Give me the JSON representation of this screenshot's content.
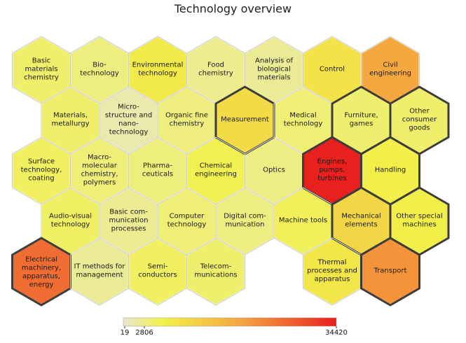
{
  "chart_data": {
    "type": "hexbin-map",
    "title": "Technology overview",
    "color_scale": {
      "min": 19,
      "max": 34420,
      "tick_labels": [
        "19",
        "2806",
        "34420"
      ],
      "tick_values": [
        19,
        2806,
        34420
      ],
      "colors": [
        "#e8e6d2",
        "#f2f24a",
        "#f5a640",
        "#e8201e"
      ]
    },
    "cells": [
      {
        "row": 0,
        "col": 0,
        "label": "Basic materials chemistry",
        "lines": [
          "Basic",
          "materials",
          "chemistry"
        ],
        "value": 420,
        "bold": false
      },
      {
        "row": 0,
        "col": 1,
        "label": "Biotechnology",
        "lines": [
          "Bio-",
          "technology"
        ],
        "value": 230,
        "bold": false
      },
      {
        "row": 0,
        "col": 2,
        "label": "Environmental technology",
        "lines": [
          "Environmental",
          "technology"
        ],
        "value": 1500,
        "bold": false
      },
      {
        "row": 0,
        "col": 3,
        "label": "Food chemistry",
        "lines": [
          "Food",
          "chemistry"
        ],
        "value": 150,
        "bold": false
      },
      {
        "row": 0,
        "col": 4,
        "label": "Analysis of biological materials",
        "lines": [
          "Analysis of",
          "biological",
          "materials"
        ],
        "value": 120,
        "bold": false
      },
      {
        "row": 0,
        "col": 5,
        "label": "Control",
        "lines": [
          "Control"
        ],
        "value": 1900,
        "bold": false
      },
      {
        "row": 0,
        "col": 6,
        "label": "Civil engineering",
        "lines": [
          "Civil",
          "engineering"
        ],
        "value": 11000,
        "bold": false
      },
      {
        "row": 1,
        "col": 0,
        "label": "Materials, metallurgy",
        "lines": [
          "Materials,",
          "metallurgy"
        ],
        "value": 420,
        "bold": false
      },
      {
        "row": 1,
        "col": 1,
        "label": "Microstructure and nanotechnology",
        "lines": [
          "Micro-",
          "structure and",
          "nano-",
          "technology"
        ],
        "value": 60,
        "bold": false
      },
      {
        "row": 1,
        "col": 2,
        "label": "Organic fine chemistry",
        "lines": [
          "Organic fine",
          "chemistry"
        ],
        "value": 240,
        "bold": false
      },
      {
        "row": 1,
        "col": 3,
        "label": "Measurement",
        "lines": [
          "Measurement"
        ],
        "value": 2400,
        "bold": true
      },
      {
        "row": 1,
        "col": 4,
        "label": "Medical technology",
        "lines": [
          "Medical",
          "technology"
        ],
        "value": 320,
        "bold": false
      },
      {
        "row": 1,
        "col": 5,
        "label": "Furniture, games",
        "lines": [
          "Furniture,",
          "games"
        ],
        "value": 380,
        "bold": true
      },
      {
        "row": 1,
        "col": 6,
        "label": "Other consumer goods",
        "lines": [
          "Other",
          "consumer",
          "goods"
        ],
        "value": 420,
        "bold": true
      },
      {
        "row": 2,
        "col": 0,
        "label": "Surface technology, coating",
        "lines": [
          "Surface",
          "technology,",
          "coating"
        ],
        "value": 600,
        "bold": false
      },
      {
        "row": 2,
        "col": 1,
        "label": "Macromolecular chemistry, polymers",
        "lines": [
          "Macro-",
          "molecular",
          "chemistry,",
          "polymers"
        ],
        "value": 300,
        "bold": false
      },
      {
        "row": 2,
        "col": 2,
        "label": "Pharmaceuticals",
        "lines": [
          "Pharma-",
          "ceuticals"
        ],
        "value": 260,
        "bold": false
      },
      {
        "row": 2,
        "col": 3,
        "label": "Chemical engineering",
        "lines": [
          "Chemical",
          "engineering"
        ],
        "value": 950,
        "bold": false
      },
      {
        "row": 2,
        "col": 4,
        "label": "Optics",
        "lines": [
          "Optics"
        ],
        "value": 200,
        "bold": false
      },
      {
        "row": 2,
        "col": 5,
        "label": "Engines, pumps, turbines",
        "lines": [
          "Engines,",
          "pumps,",
          "turbines"
        ],
        "value": 34420,
        "bold": true
      },
      {
        "row": 2,
        "col": 6,
        "label": "Handling",
        "lines": [
          "Handling"
        ],
        "value": 1300,
        "bold": true
      },
      {
        "row": 3,
        "col": 0,
        "label": "Audio-visual technology",
        "lines": [
          "Audio-visual",
          "technology"
        ],
        "value": 520,
        "bold": false
      },
      {
        "row": 3,
        "col": 1,
        "label": "Basic communication processes",
        "lines": [
          "Basic com-",
          "munication",
          "processes"
        ],
        "value": 130,
        "bold": false
      },
      {
        "row": 3,
        "col": 2,
        "label": "Computer technology",
        "lines": [
          "Computer",
          "technology"
        ],
        "value": 300,
        "bold": false
      },
      {
        "row": 3,
        "col": 3,
        "label": "Digital communication",
        "lines": [
          "Digital com-",
          "munication"
        ],
        "value": 220,
        "bold": false
      },
      {
        "row": 3,
        "col": 4,
        "label": "Machine tools",
        "lines": [
          "Machine tools"
        ],
        "value": 700,
        "bold": false
      },
      {
        "row": 3,
        "col": 5,
        "label": "Mechanical elements",
        "lines": [
          "Mechanical",
          "elements"
        ],
        "value": 2700,
        "bold": true
      },
      {
        "row": 3,
        "col": 6,
        "label": "Other special machines",
        "lines": [
          "Other special",
          "machines"
        ],
        "value": 1300,
        "bold": true
      },
      {
        "row": 4,
        "col": 0,
        "label": "Electrical machinery, apparatus, energy",
        "lines": [
          "Electrical",
          "machinery,",
          "apparatus,",
          "energy"
        ],
        "value": 18000,
        "bold": true
      },
      {
        "row": 4,
        "col": 1,
        "label": "IT methods for management",
        "lines": [
          "IT methods for",
          "management"
        ],
        "value": 120,
        "bold": false
      },
      {
        "row": 4,
        "col": 2,
        "label": "Semiconductors",
        "lines": [
          "Semi-",
          "conductors"
        ],
        "value": 600,
        "bold": false
      },
      {
        "row": 4,
        "col": 3,
        "label": "Telecommunications",
        "lines": [
          "Telecom-",
          "munications"
        ],
        "value": 400,
        "bold": false
      },
      {
        "row": 4,
        "col": 5,
        "label": "Thermal processes and apparatus",
        "lines": [
          "Thermal",
          "processes and",
          "apparatus"
        ],
        "value": 1700,
        "bold": false
      },
      {
        "row": 4,
        "col": 6,
        "label": "Transport",
        "lines": [
          "Transport"
        ],
        "value": 13000,
        "bold": true
      }
    ]
  }
}
